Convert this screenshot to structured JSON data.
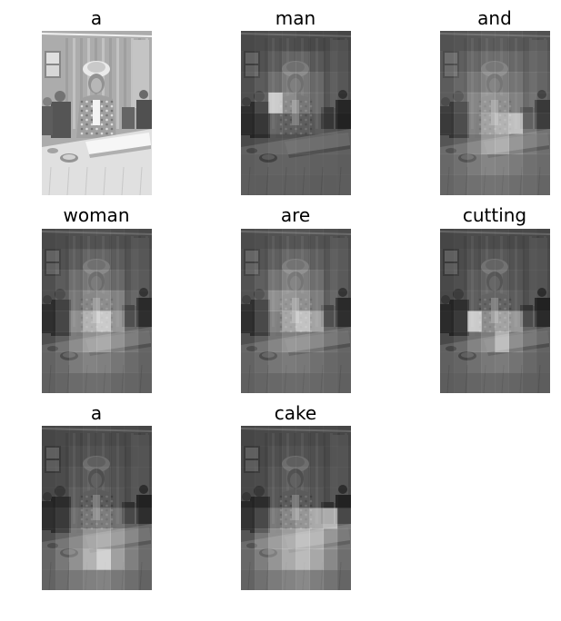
{
  "panels": [
    {
      "word": "a",
      "mode": "original",
      "heat": null
    },
    {
      "word": "man",
      "mode": "attention",
      "heat": [
        [
          0.1,
          0.12,
          0.14,
          0.14,
          0.12,
          0.1,
          0.1,
          0.08
        ],
        [
          0.12,
          0.16,
          0.22,
          0.28,
          0.28,
          0.2,
          0.14,
          0.1
        ],
        [
          0.14,
          0.22,
          0.34,
          0.42,
          0.4,
          0.3,
          0.18,
          0.12
        ],
        [
          0.14,
          0.3,
          0.95,
          0.55,
          0.42,
          0.32,
          0.18,
          0.12
        ],
        [
          0.12,
          0.2,
          0.3,
          0.28,
          0.26,
          0.22,
          0.16,
          0.1
        ],
        [
          0.1,
          0.14,
          0.18,
          0.18,
          0.16,
          0.14,
          0.12,
          0.1
        ],
        [
          0.08,
          0.1,
          0.12,
          0.12,
          0.12,
          0.1,
          0.1,
          0.08
        ],
        [
          0.08,
          0.08,
          0.1,
          0.1,
          0.1,
          0.08,
          0.08,
          0.08
        ]
      ]
    },
    {
      "word": "and",
      "mode": "attention",
      "heat": [
        [
          0.16,
          0.18,
          0.2,
          0.22,
          0.22,
          0.2,
          0.18,
          0.16
        ],
        [
          0.2,
          0.24,
          0.3,
          0.34,
          0.34,
          0.3,
          0.24,
          0.2
        ],
        [
          0.22,
          0.3,
          0.4,
          0.46,
          0.44,
          0.38,
          0.28,
          0.22
        ],
        [
          0.22,
          0.34,
          0.5,
          0.62,
          0.58,
          0.46,
          0.32,
          0.22
        ],
        [
          0.2,
          0.32,
          0.48,
          0.7,
          0.8,
          0.88,
          0.4,
          0.24
        ],
        [
          0.18,
          0.26,
          0.4,
          0.62,
          0.66,
          0.46,
          0.3,
          0.2
        ],
        [
          0.16,
          0.22,
          0.3,
          0.38,
          0.36,
          0.3,
          0.22,
          0.18
        ],
        [
          0.14,
          0.18,
          0.22,
          0.24,
          0.24,
          0.2,
          0.18,
          0.14
        ]
      ]
    },
    {
      "word": "woman",
      "mode": "attention",
      "heat": [
        [
          0.1,
          0.12,
          0.14,
          0.16,
          0.16,
          0.14,
          0.12,
          0.1
        ],
        [
          0.12,
          0.16,
          0.22,
          0.28,
          0.28,
          0.22,
          0.16,
          0.12
        ],
        [
          0.14,
          0.22,
          0.34,
          0.4,
          0.38,
          0.3,
          0.18,
          0.14
        ],
        [
          0.14,
          0.26,
          0.4,
          0.52,
          0.56,
          0.46,
          0.24,
          0.14
        ],
        [
          0.14,
          0.28,
          0.56,
          0.8,
          0.95,
          0.62,
          0.3,
          0.16
        ],
        [
          0.14,
          0.24,
          0.44,
          0.58,
          0.62,
          0.44,
          0.26,
          0.14
        ],
        [
          0.12,
          0.18,
          0.3,
          0.36,
          0.34,
          0.26,
          0.18,
          0.12
        ],
        [
          0.1,
          0.14,
          0.18,
          0.2,
          0.2,
          0.16,
          0.14,
          0.1
        ]
      ]
    },
    {
      "word": "are",
      "mode": "attention",
      "heat": [
        [
          0.12,
          0.14,
          0.16,
          0.18,
          0.18,
          0.16,
          0.14,
          0.12
        ],
        [
          0.14,
          0.18,
          0.24,
          0.3,
          0.3,
          0.24,
          0.18,
          0.14
        ],
        [
          0.16,
          0.24,
          0.38,
          0.46,
          0.44,
          0.34,
          0.2,
          0.14
        ],
        [
          0.16,
          0.3,
          0.56,
          0.62,
          0.58,
          0.44,
          0.24,
          0.14
        ],
        [
          0.14,
          0.3,
          0.48,
          0.72,
          0.9,
          0.7,
          0.3,
          0.16
        ],
        [
          0.14,
          0.24,
          0.38,
          0.48,
          0.46,
          0.36,
          0.22,
          0.14
        ],
        [
          0.12,
          0.18,
          0.26,
          0.3,
          0.28,
          0.22,
          0.16,
          0.12
        ],
        [
          0.1,
          0.14,
          0.16,
          0.18,
          0.18,
          0.16,
          0.14,
          0.1
        ]
      ]
    },
    {
      "word": "cutting",
      "mode": "attention",
      "heat": [
        [
          0.08,
          0.1,
          0.12,
          0.12,
          0.12,
          0.1,
          0.1,
          0.08
        ],
        [
          0.1,
          0.12,
          0.16,
          0.2,
          0.2,
          0.16,
          0.12,
          0.1
        ],
        [
          0.1,
          0.14,
          0.22,
          0.26,
          0.24,
          0.18,
          0.12,
          0.1
        ],
        [
          0.1,
          0.16,
          0.24,
          0.3,
          0.3,
          0.22,
          0.14,
          0.1
        ],
        [
          0.12,
          0.22,
          0.95,
          0.56,
          0.7,
          0.62,
          0.28,
          0.14
        ],
        [
          0.1,
          0.18,
          0.36,
          0.46,
          0.78,
          0.4,
          0.22,
          0.12
        ],
        [
          0.1,
          0.14,
          0.22,
          0.28,
          0.3,
          0.24,
          0.16,
          0.1
        ],
        [
          0.08,
          0.1,
          0.14,
          0.16,
          0.16,
          0.14,
          0.1,
          0.08
        ]
      ]
    },
    {
      "word": "a",
      "mode": "attention",
      "heat": [
        [
          0.08,
          0.1,
          0.1,
          0.12,
          0.12,
          0.1,
          0.1,
          0.08
        ],
        [
          0.1,
          0.1,
          0.14,
          0.16,
          0.16,
          0.14,
          0.1,
          0.1
        ],
        [
          0.1,
          0.12,
          0.18,
          0.22,
          0.2,
          0.16,
          0.12,
          0.1
        ],
        [
          0.1,
          0.14,
          0.22,
          0.26,
          0.24,
          0.18,
          0.12,
          0.1
        ],
        [
          0.14,
          0.22,
          0.34,
          0.42,
          0.46,
          0.38,
          0.26,
          0.16
        ],
        [
          0.14,
          0.26,
          0.42,
          0.6,
          0.66,
          0.52,
          0.34,
          0.18
        ],
        [
          0.14,
          0.28,
          0.46,
          0.72,
          0.95,
          0.58,
          0.34,
          0.18
        ],
        [
          0.12,
          0.2,
          0.28,
          0.34,
          0.36,
          0.28,
          0.2,
          0.12
        ]
      ]
    },
    {
      "word": "cake",
      "mode": "attention",
      "heat": [
        [
          0.08,
          0.1,
          0.1,
          0.12,
          0.12,
          0.1,
          0.1,
          0.08
        ],
        [
          0.1,
          0.1,
          0.14,
          0.16,
          0.16,
          0.14,
          0.1,
          0.1
        ],
        [
          0.1,
          0.12,
          0.18,
          0.22,
          0.2,
          0.16,
          0.12,
          0.1
        ],
        [
          0.1,
          0.14,
          0.2,
          0.24,
          0.24,
          0.18,
          0.12,
          0.1
        ],
        [
          0.16,
          0.3,
          0.42,
          0.52,
          0.62,
          0.74,
          0.82,
          0.3
        ],
        [
          0.18,
          0.4,
          0.56,
          0.66,
          0.8,
          0.72,
          0.46,
          0.24
        ],
        [
          0.16,
          0.32,
          0.5,
          0.66,
          0.78,
          0.64,
          0.4,
          0.2
        ],
        [
          0.12,
          0.22,
          0.3,
          0.36,
          0.4,
          0.32,
          0.24,
          0.14
        ]
      ]
    }
  ]
}
